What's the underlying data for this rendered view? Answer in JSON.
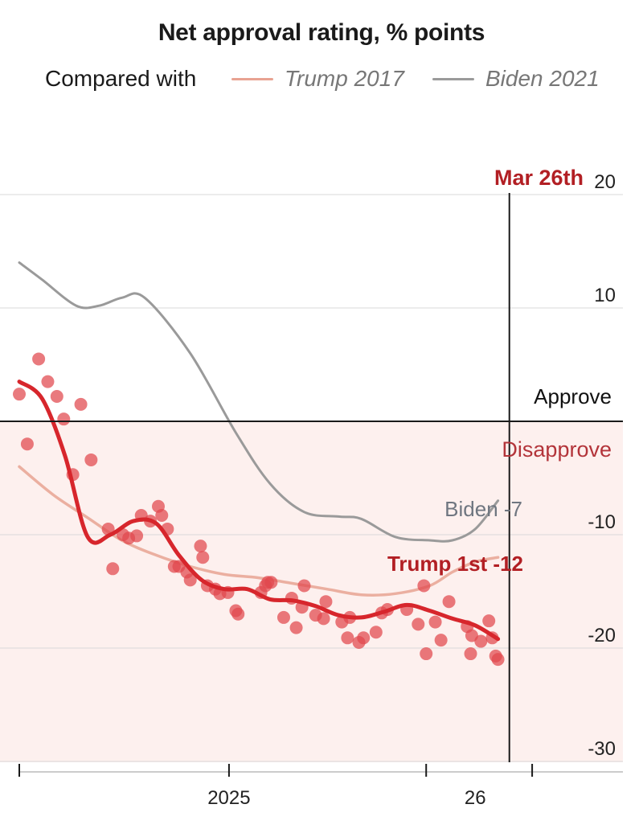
{
  "title": "Net approval rating, % points",
  "legend": {
    "lead": "Compared with",
    "items": [
      {
        "label": "Trump 2017",
        "color": "#e8a392"
      },
      {
        "label": "Biden 2021",
        "color": "#9a9a9a"
      }
    ]
  },
  "colors": {
    "trump_points": "#e0474c",
    "trump_line": "#d7262c",
    "date_label": "#b21f24",
    "disapprove_text": "#b3343a",
    "disapprove_band": "#fdf0ee",
    "zero_line": "#1a1a1a"
  },
  "chart_data": {
    "type": "line",
    "ylim": [
      -30,
      20
    ],
    "y_ticks": [
      20,
      10,
      -10,
      -20,
      -30
    ],
    "x_ticks": [
      "2025",
      "26"
    ],
    "x_range_days": [
      0,
      450
    ],
    "x_tick_days": [
      0,
      184,
      357,
      450
    ],
    "x_tick_labels_days": [
      184,
      400
    ],
    "current_date_day": 430,
    "annotations": {
      "current_date": "Mar 26th",
      "approve": "Approve",
      "disapprove": "Disapprove",
      "biden_end": "Biden -7",
      "trump_first_end": "Trump 1st -12"
    },
    "series": [
      {
        "name": "Trump 2017",
        "x": [
          0,
          30,
          60,
          90,
          120,
          150,
          180,
          210,
          240,
          270,
          300,
          330,
          360,
          380,
          400,
          420
        ],
        "values": [
          -4,
          -6.5,
          -8.5,
          -10.5,
          -11.8,
          -12.8,
          -13.5,
          -13.8,
          -14.3,
          -14.8,
          -15.3,
          -15.2,
          -14.5,
          -13.3,
          -12.4,
          -12
        ]
      },
      {
        "name": "Biden 2021",
        "x": [
          0,
          20,
          50,
          70,
          90,
          110,
          150,
          190,
          220,
          250,
          280,
          300,
          330,
          360,
          380,
          400,
          420
        ],
        "values": [
          14,
          12.5,
          10.2,
          10.2,
          10.9,
          10.9,
          6,
          -1,
          -5.5,
          -8,
          -8.4,
          -8.6,
          -10.2,
          -10.5,
          -10.5,
          -9.5,
          -7
        ]
      },
      {
        "name": "Trump 2025",
        "x": [
          0,
          20,
          40,
          60,
          80,
          100,
          120,
          140,
          160,
          180,
          200,
          220,
          240,
          260,
          280,
          300,
          320,
          340,
          360,
          380,
          400,
          420
        ],
        "values": [
          3.5,
          2,
          -3,
          -10.2,
          -10,
          -8.8,
          -9,
          -11.8,
          -14,
          -14.8,
          -14.8,
          -15.7,
          -15.8,
          -16.3,
          -17.1,
          -17.3,
          -16.8,
          -16.2,
          -16.7,
          -17.4,
          -18,
          -19.2
        ]
      }
    ],
    "points": {
      "x": [
        0,
        7,
        17,
        25,
        33,
        39,
        47,
        54,
        63,
        78,
        82,
        91,
        96,
        103,
        107,
        122,
        115,
        125,
        130,
        150,
        147,
        140,
        136,
        159,
        161,
        165,
        172,
        176,
        183,
        192,
        190,
        212,
        216,
        218,
        221,
        232,
        243,
        239,
        248,
        250,
        260,
        267,
        269,
        288,
        283,
        290,
        298,
        302,
        313,
        323,
        318,
        340,
        355,
        357,
        365,
        370,
        377,
        393,
        396,
        405,
        412,
        418,
        415,
        420,
        397,
        350
      ],
      "values": [
        2.4,
        -2,
        5.5,
        3.5,
        2.2,
        0.2,
        -4.7,
        1.5,
        -3.4,
        -9.5,
        -13,
        -10,
        -10.3,
        -10.1,
        -8.3,
        -7.5,
        -8.8,
        -8.3,
        -9.5,
        -14,
        -13.3,
        -12.8,
        -12.8,
        -11,
        -12,
        -14.5,
        -14.8,
        -15.2,
        -15.1,
        -17,
        -16.7,
        -15.1,
        -14.5,
        -14.2,
        -14.2,
        -17.3,
        -18.2,
        -15.6,
        -16.4,
        -14.5,
        -17.1,
        -17.4,
        -15.9,
        -19.1,
        -17.7,
        -17.3,
        -19.5,
        -19.1,
        -18.6,
        -16.6,
        -16.9,
        -16.6,
        -14.5,
        -20.5,
        -17.7,
        -19.3,
        -15.9,
        -18.1,
        -20.5,
        -19.4,
        -17.6,
        -20.7,
        -19.1,
        -21,
        -18.9,
        -17.9
      ]
    }
  }
}
